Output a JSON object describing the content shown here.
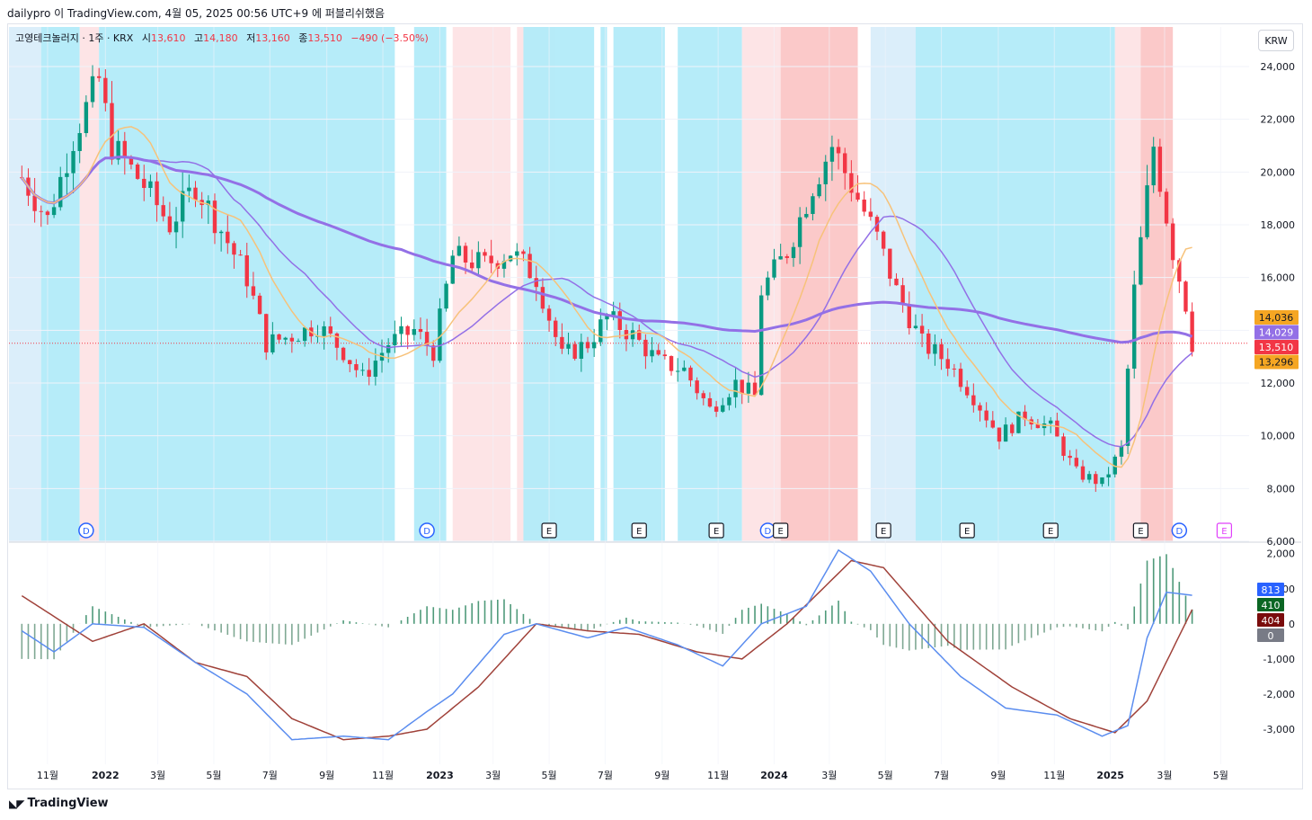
{
  "header": {
    "author_line": "dailypro 이 TradingView.com, 4월 05, 2025 00:56 UTC+9 에 퍼블리쉬했음"
  },
  "legend": {
    "symbol": "고영테크놀러지 · 1주 · KRX",
    "open_label": "시",
    "open": "13,610",
    "high_label": "고",
    "high": "14,180",
    "low_label": "저",
    "low": "13,160",
    "close_label": "종",
    "close": "13,510",
    "change": "−490 (−3.50%)"
  },
  "currency_button": "KRW",
  "brand": "TradingView",
  "colors": {
    "up": "#089981",
    "down": "#f23645",
    "band_blue": "#b2ebf9",
    "band_lightblue": "#dbeefa",
    "band_pink": "#fde4e6",
    "band_red": "#fbc9c9",
    "macd": "#5b8def",
    "signal": "#a0423a"
  },
  "chart_data": [
    {
      "type": "candlestick",
      "panel": "price",
      "timeframe": "1W",
      "x_ticks": [
        "11월",
        "2022",
        "3월",
        "5월",
        "7월",
        "9월",
        "11월",
        "2023",
        "3월",
        "5월",
        "7월",
        "9월",
        "11월",
        "2024",
        "3월",
        "5월",
        "7월",
        "9월",
        "11월",
        "2025",
        "3월",
        "5월"
      ],
      "y_ticks": [
        "24,000",
        "22,000",
        "20,000",
        "18,000",
        "16,000",
        "14,000",
        "12,000",
        "10,000",
        "8,000",
        "6,000"
      ],
      "ylim": [
        6000,
        25500
      ],
      "close_path": [
        [
          "2021-10-04",
          19800
        ],
        [
          "2021-11-01",
          18200
        ],
        [
          "2021-12-01",
          21500
        ],
        [
          "2021-12-27",
          23500
        ],
        [
          "2022-01-10",
          21000
        ],
        [
          "2022-02-14",
          19500
        ],
        [
          "2022-03-14",
          18000
        ],
        [
          "2022-04-11",
          19500
        ],
        [
          "2022-05-09",
          17800
        ],
        [
          "2022-06-06",
          16000
        ],
        [
          "2022-06-27",
          13500
        ],
        [
          "2022-07-25",
          13800
        ],
        [
          "2022-08-22",
          14200
        ],
        [
          "2022-09-19",
          13200
        ],
        [
          "2022-10-10",
          12200
        ],
        [
          "2022-11-07",
          13500
        ],
        [
          "2022-12-05",
          14000
        ],
        [
          "2022-12-26",
          13200
        ],
        [
          "2023-01-16",
          16800
        ],
        [
          "2023-02-20",
          16500
        ],
        [
          "2023-03-20",
          17000
        ],
        [
          "2023-04-17",
          16000
        ],
        [
          "2023-05-15",
          13000
        ],
        [
          "2023-06-12",
          13500
        ],
        [
          "2023-07-03",
          14500
        ],
        [
          "2023-07-31",
          13800
        ],
        [
          "2023-08-28",
          12800
        ],
        [
          "2023-09-25",
          12500
        ],
        [
          "2023-10-23",
          11000
        ],
        [
          "2023-11-20",
          12000
        ],
        [
          "2023-12-11",
          11500
        ],
        [
          "2023-12-18",
          15500
        ],
        [
          "2024-01-15",
          17000
        ],
        [
          "2024-02-12",
          19500
        ],
        [
          "2024-03-04",
          21000
        ],
        [
          "2024-03-25",
          19500
        ],
        [
          "2024-04-22",
          17500
        ],
        [
          "2024-05-13",
          15500
        ],
        [
          "2024-06-10",
          13500
        ],
        [
          "2024-07-08",
          12800
        ],
        [
          "2024-08-05",
          11500
        ],
        [
          "2024-09-02",
          10000
        ],
        [
          "2024-09-30",
          10800
        ],
        [
          "2024-10-28",
          10300
        ],
        [
          "2024-11-25",
          8600
        ],
        [
          "2024-12-23",
          8200
        ],
        [
          "2025-01-13",
          9500
        ],
        [
          "2025-01-27",
          15500
        ],
        [
          "2025-02-17",
          21000
        ],
        [
          "2025-03-10",
          17000
        ],
        [
          "2025-03-24",
          15000
        ],
        [
          "2025-03-31",
          13510
        ]
      ],
      "last": {
        "open": 13610,
        "high": 14180,
        "low": 13160,
        "close": 13510
      },
      "series": [
        {
          "name": "MA 14036",
          "color": "#f5b24f"
        },
        {
          "name": "MA 14029",
          "color": "#9370e6"
        },
        {
          "name": "MA 13296",
          "color": "#f5a623"
        }
      ],
      "price_labels": [
        {
          "text": "14,036",
          "value": 14036,
          "color": "#f5a623"
        },
        {
          "text": "14,029",
          "value": 14029,
          "color": "#9370e6"
        },
        {
          "text": "13,510",
          "value": 13510,
          "color": "#f23645"
        },
        {
          "text": "13,296",
          "value": 13296,
          "color": "#f5a623"
        }
      ],
      "event_markers": [
        "D",
        "D",
        "E",
        "E",
        "E",
        "D",
        "E",
        "E",
        "E",
        "E",
        "E",
        "D",
        "E"
      ]
    },
    {
      "type": "macd",
      "panel": "oscillator",
      "y_ticks": [
        "2,000",
        "1,000",
        "0",
        "-1,000",
        "-2,000",
        "-3,000"
      ],
      "ylim": [
        -4000,
        2300
      ],
      "macd_path": [
        [
          "2021-10-04",
          -200
        ],
        [
          "2021-11-08",
          -800
        ],
        [
          "2021-12-20",
          0
        ],
        [
          "2022-02-14",
          -100
        ],
        [
          "2022-04-11",
          -1100
        ],
        [
          "2022-06-06",
          -2000
        ],
        [
          "2022-07-25",
          -3300
        ],
        [
          "2022-09-19",
          -3200
        ],
        [
          "2022-11-07",
          -3300
        ],
        [
          "2022-12-19",
          -2500
        ],
        [
          "2023-01-16",
          -2000
        ],
        [
          "2023-03-13",
          -300
        ],
        [
          "2023-04-17",
          0
        ],
        [
          "2023-06-12",
          -400
        ],
        [
          "2023-07-24",
          -100
        ],
        [
          "2023-09-18",
          -600
        ],
        [
          "2023-11-06",
          -1200
        ],
        [
          "2023-12-18",
          0
        ],
        [
          "2024-02-05",
          500
        ],
        [
          "2024-03-11",
          2100
        ],
        [
          "2024-04-15",
          1500
        ],
        [
          "2024-05-27",
          0
        ],
        [
          "2024-07-22",
          -1500
        ],
        [
          "2024-09-09",
          -2400
        ],
        [
          "2024-11-04",
          -2600
        ],
        [
          "2024-12-23",
          -3200
        ],
        [
          "2025-01-20",
          -2900
        ],
        [
          "2025-02-10",
          -400
        ],
        [
          "2025-03-03",
          900
        ],
        [
          "2025-03-31",
          813
        ]
      ],
      "signal_path": [
        [
          "2021-10-04",
          800
        ],
        [
          "2021-12-20",
          -500
        ],
        [
          "2022-02-14",
          0
        ],
        [
          "2022-04-11",
          -1100
        ],
        [
          "2022-06-06",
          -1500
        ],
        [
          "2022-07-25",
          -2700
        ],
        [
          "2022-09-19",
          -3300
        ],
        [
          "2022-11-07",
          -3200
        ],
        [
          "2022-12-19",
          -3000
        ],
        [
          "2023-02-13",
          -1800
        ],
        [
          "2023-04-17",
          0
        ],
        [
          "2023-06-12",
          -200
        ],
        [
          "2023-08-07",
          -300
        ],
        [
          "2023-10-09",
          -800
        ],
        [
          "2023-11-27",
          -1000
        ],
        [
          "2024-01-15",
          0
        ],
        [
          "2024-03-25",
          1800
        ],
        [
          "2024-04-29",
          1600
        ],
        [
          "2024-07-08",
          -500
        ],
        [
          "2024-09-16",
          -1800
        ],
        [
          "2024-11-18",
          -2700
        ],
        [
          "2025-01-06",
          -3100
        ],
        [
          "2025-02-10",
          -2200
        ],
        [
          "2025-03-31",
          404
        ]
      ],
      "labels": [
        {
          "text": "813",
          "value": 813,
          "color": "#2962ff"
        },
        {
          "text": "410",
          "value": 410,
          "color": "#0b6623"
        },
        {
          "text": "404",
          "value": 404,
          "color": "#7a0c0c"
        },
        {
          "text": "0",
          "value": 0,
          "color": "#787b86"
        }
      ]
    }
  ]
}
